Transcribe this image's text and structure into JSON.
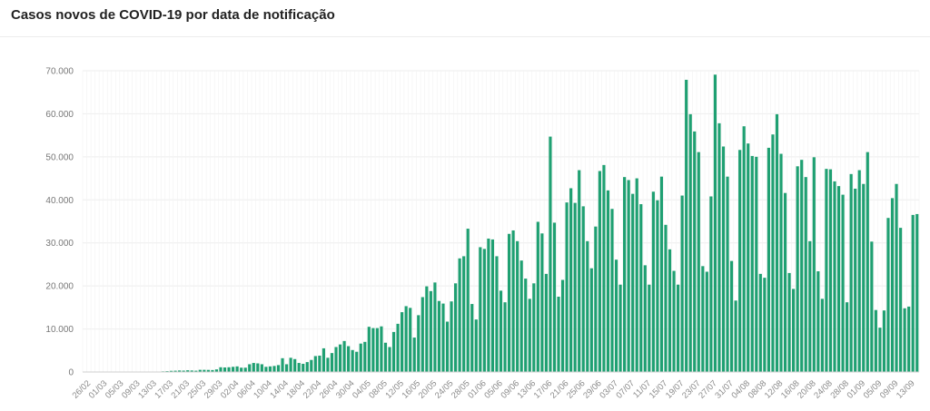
{
  "chart_data": {
    "type": "bar",
    "title": "Casos novos de COVID-19 por data de notificação",
    "xlabel": "",
    "ylabel": "",
    "ylim": [
      0,
      70000
    ],
    "yticks": [
      0,
      10000,
      20000,
      30000,
      40000,
      50000,
      60000,
      70000
    ],
    "ytick_labels": [
      "0",
      "10.000",
      "20.000",
      "30.000",
      "40.000",
      "50.000",
      "60.000",
      "70.000"
    ],
    "grid": true,
    "bar_color": "#1fa072",
    "start_date": "26/02",
    "xtick_labels": [
      "26/02",
      "01/03",
      "05/03",
      "09/03",
      "13/03",
      "17/03",
      "21/03",
      "25/03",
      "29/03",
      "02/04",
      "06/04",
      "10/04",
      "14/04",
      "18/04",
      "22/04",
      "26/04",
      "30/04",
      "04/05",
      "08/05",
      "12/05",
      "16/05",
      "20/05",
      "24/05",
      "28/05",
      "01/06",
      "05/06",
      "09/06",
      "13/06",
      "17/06",
      "21/06",
      "25/06",
      "29/06",
      "03/07",
      "07/07",
      "11/07",
      "15/07",
      "19/07",
      "23/07",
      "27/07",
      "31/07",
      "04/08",
      "08/08",
      "12/08",
      "16/08",
      "20/08",
      "24/08",
      "28/08",
      "01/09",
      "05/09",
      "09/09",
      "13/09"
    ],
    "values": [
      1,
      0,
      0,
      1,
      0,
      1,
      2,
      0,
      5,
      7,
      7,
      0,
      19,
      21,
      13,
      25,
      50,
      75,
      98,
      150,
      202,
      270,
      300,
      350,
      320,
      400,
      350,
      300,
      500,
      500,
      480,
      450,
      600,
      1100,
      1050,
      1100,
      1200,
      1300,
      1000,
      1000,
      1800,
      2100,
      2000,
      1800,
      1200,
      1300,
      1400,
      1600,
      3200,
      1800,
      3300,
      3000,
      2100,
      1900,
      2300,
      2800,
      3700,
      3800,
      5500,
      3300,
      4400,
      5800,
      6400,
      7200,
      6000,
      5100,
      4700,
      6600,
      7000,
      10500,
      10200,
      10200,
      10600,
      6800,
      5800,
      9300,
      11200,
      13900,
      15300,
      14900,
      8000,
      13200,
      17400,
      19900,
      18800,
      20800,
      16500,
      15900,
      11700,
      16400,
      20600,
      26400,
      26900,
      33300,
      15800,
      12200,
      29000,
      28600,
      31000,
      30800,
      26900,
      18900,
      16200,
      32100,
      32900,
      30400,
      25900,
      21700,
      17000,
      20600,
      34900,
      32200,
      22800,
      54700,
      34700,
      17500,
      21400,
      39400,
      42700,
      39300,
      46900,
      38500,
      30400,
      24100,
      33800,
      46700,
      48100,
      42200,
      37900,
      26100,
      20300,
      45300,
      44600,
      41400,
      45000,
      39000,
      24800,
      20300,
      41900,
      39900,
      45400,
      34200,
      28500,
      23500,
      20300,
      41000,
      67900,
      59900,
      55900,
      51100,
      24600,
      23300,
      40800,
      69100,
      57800,
      52400,
      45400,
      25800,
      16600,
      51600,
      57100,
      53100,
      50200,
      50000,
      22800,
      21900,
      52100,
      55200,
      59900,
      50700,
      41600,
      23000,
      19300,
      47800,
      49300,
      45300,
      30400,
      49900,
      23400,
      17000,
      47200,
      47100,
      44300,
      43200,
      41200,
      16200,
      46000,
      42600,
      46900,
      43700,
      51100,
      30300,
      14400,
      10300,
      14300,
      35800,
      40400,
      43700,
      33500,
      14800,
      15200,
      36500,
      36700
    ]
  }
}
